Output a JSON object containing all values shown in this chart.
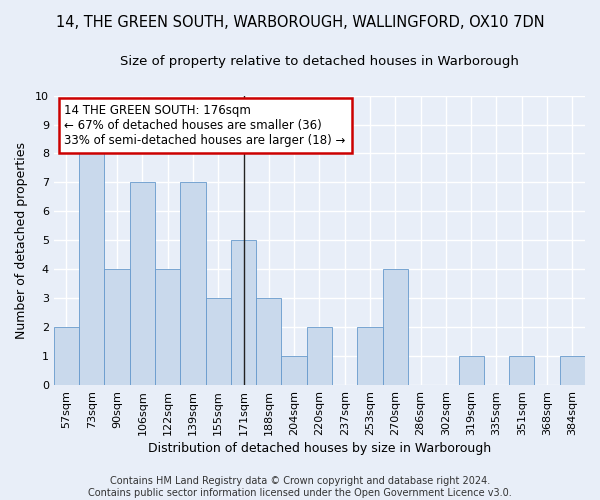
{
  "title_line1": "14, THE GREEN SOUTH, WARBOROUGH, WALLINGFORD, OX10 7DN",
  "title_line2": "Size of property relative to detached houses in Warborough",
  "xlabel": "Distribution of detached houses by size in Warborough",
  "ylabel": "Number of detached properties",
  "footnote": "Contains HM Land Registry data © Crown copyright and database right 2024.\nContains public sector information licensed under the Open Government Licence v3.0.",
  "categories": [
    "57sqm",
    "73sqm",
    "90sqm",
    "106sqm",
    "122sqm",
    "139sqm",
    "155sqm",
    "171sqm",
    "188sqm",
    "204sqm",
    "220sqm",
    "237sqm",
    "253sqm",
    "270sqm",
    "286sqm",
    "302sqm",
    "319sqm",
    "335sqm",
    "351sqm",
    "368sqm",
    "384sqm"
  ],
  "values": [
    2,
    8,
    4,
    7,
    4,
    7,
    3,
    5,
    3,
    1,
    2,
    0,
    2,
    4,
    0,
    0,
    1,
    0,
    1,
    0,
    1
  ],
  "bar_color": "#c9d9ec",
  "bar_edgecolor": "#6699cc",
  "property_line_index": 7,
  "annotation_text": "14 THE GREEN SOUTH: 176sqm\n← 67% of detached houses are smaller (36)\n33% of semi-detached houses are larger (18) →",
  "annotation_box_color": "white",
  "annotation_box_edgecolor": "#cc0000",
  "ylim": [
    0,
    10
  ],
  "yticks": [
    0,
    1,
    2,
    3,
    4,
    5,
    6,
    7,
    8,
    9,
    10
  ],
  "background_color": "#e8eef8",
  "grid_color": "white",
  "title_fontsize": 10.5,
  "subtitle_fontsize": 9.5,
  "axis_label_fontsize": 9,
  "tick_fontsize": 8,
  "footnote_fontsize": 7
}
